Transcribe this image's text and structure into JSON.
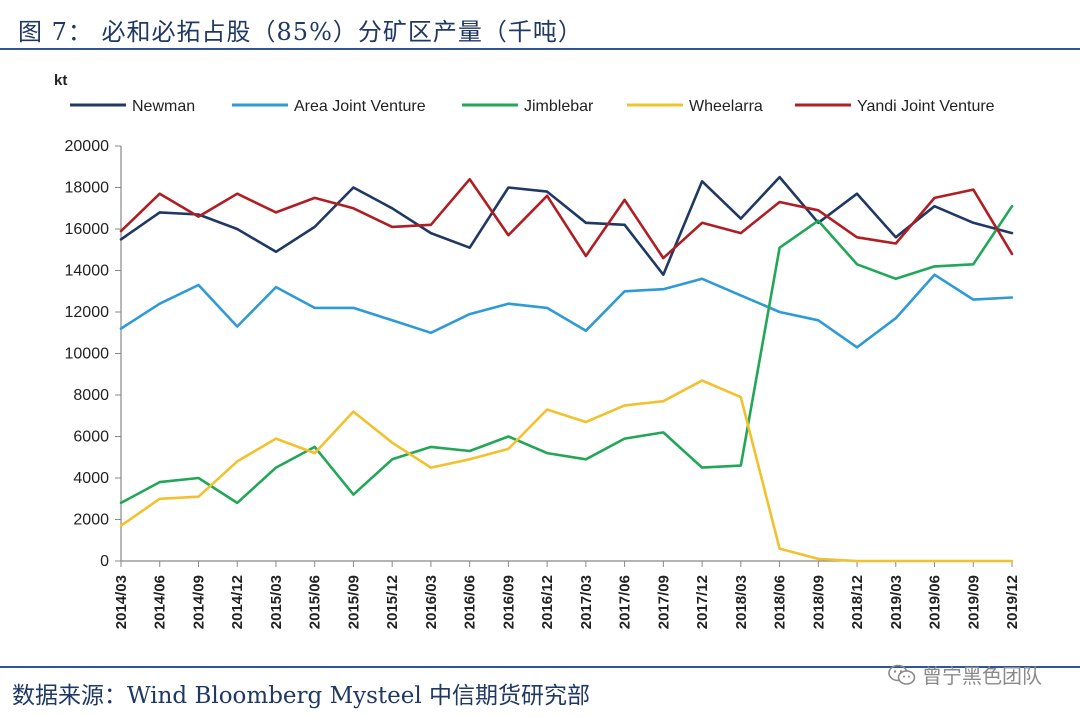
{
  "header": {
    "title": "图 7：   必和必拓占股（85%）分矿区产量（千吨）"
  },
  "footer": {
    "source": "数据来源：Wind Bloomberg Mysteel 中信期货研究部",
    "watermark": "曾宁黑色团队",
    "watermark_icon": "wechat-icon"
  },
  "chart_data": {
    "type": "line",
    "unit_label": "kt",
    "ylim": [
      0,
      20000
    ],
    "yticks": [
      0,
      2000,
      4000,
      6000,
      8000,
      10000,
      12000,
      14000,
      16000,
      18000,
      20000
    ],
    "grid": false,
    "legend_position": "top",
    "categories": [
      "2014/03",
      "2014/06",
      "2014/09",
      "2014/12",
      "2015/03",
      "2015/06",
      "2015/09",
      "2015/12",
      "2016/03",
      "2016/06",
      "2016/09",
      "2016/12",
      "2017/03",
      "2017/06",
      "2017/09",
      "2017/12",
      "2018/03",
      "2018/06",
      "2018/09",
      "2018/12",
      "2019/03",
      "2019/06",
      "2019/09",
      "2019/12"
    ],
    "series": [
      {
        "name": "Newman",
        "color": "#1F3864",
        "values": [
          15500,
          16800,
          16700,
          16000,
          14900,
          16100,
          18000,
          17000,
          15800,
          15100,
          18000,
          17800,
          16300,
          16200,
          13800,
          18300,
          16500,
          18500,
          16300,
          17700,
          15600,
          17100,
          16300,
          15800
        ]
      },
      {
        "name": "Area Joint Venture",
        "color": "#2E9AD6",
        "values": [
          11200,
          12400,
          13300,
          11300,
          13200,
          12200,
          12200,
          11600,
          11000,
          11900,
          12400,
          12200,
          11100,
          13000,
          13100,
          13600,
          12800,
          12000,
          11600,
          10300,
          11700,
          13800,
          12600,
          12700
        ]
      },
      {
        "name": "Jimblebar",
        "color": "#21A757",
        "values": [
          2800,
          3800,
          4000,
          2800,
          4500,
          5500,
          3200,
          4900,
          5500,
          5300,
          6000,
          5200,
          4900,
          5900,
          6200,
          4500,
          4600,
          15100,
          16400,
          14300,
          13600,
          14200,
          14300,
          17100
        ]
      },
      {
        "name": "Wheelarra",
        "color": "#F2C12E",
        "values": [
          1700,
          3000,
          3100,
          4800,
          5900,
          5200,
          7200,
          5700,
          4500,
          4900,
          5400,
          7300,
          6700,
          7500,
          7700,
          8700,
          7900,
          600,
          100,
          0,
          0,
          0,
          0,
          0
        ]
      },
      {
        "name": "Yandi Joint Venture",
        "color": "#B01E23",
        "values": [
          15900,
          17700,
          16600,
          17700,
          16800,
          17500,
          17000,
          16100,
          16200,
          18400,
          15700,
          17600,
          14700,
          17400,
          14600,
          16300,
          15800,
          17300,
          16900,
          15600,
          15300,
          17500,
          17900,
          14800
        ]
      }
    ]
  }
}
